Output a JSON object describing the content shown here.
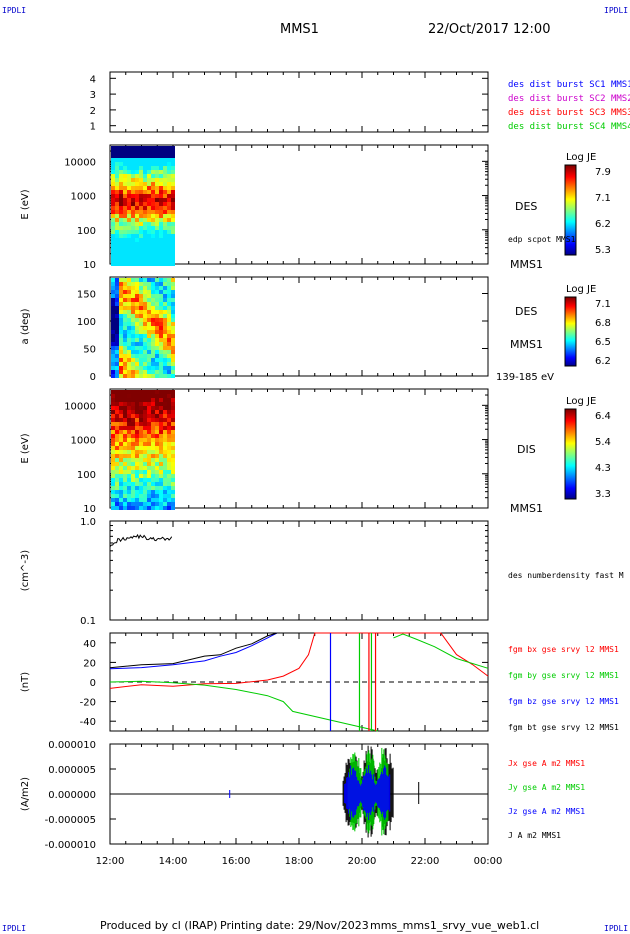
{
  "corner_label": "IPDLI",
  "header": {
    "spacecraft": "MMS1",
    "date_time": "22/Oct/2017 12:00"
  },
  "footer": {
    "produced_by": "Produced by cl (IRAP)",
    "printing_date": "Printing date: 29/Nov/2023",
    "file": "mms_mms1_srvy_vue_web1.cl"
  },
  "colors": {
    "bx": "#ff0000",
    "by": "#00cc00",
    "bz": "#0000ff",
    "bt": "#000000",
    "mms1": "#0000ff",
    "mms2": "#cc00cc",
    "mms3": "#ff0000",
    "mms4": "#00cc00"
  },
  "chart_data": [
    {
      "id": "availability",
      "type": "line",
      "yticks": [
        "1",
        "2",
        "3",
        "4"
      ],
      "ylim": [
        0.6,
        4.4
      ],
      "legend": [
        "des dist burst SC1 MMS1",
        "des dist burst SC2 MMS2",
        "des dist burst SC3 MMS3",
        "des dist burst SC4 MMS4"
      ],
      "series": []
    },
    {
      "id": "des_energy",
      "type": "heatmap",
      "ylabel": "E (eV)",
      "yscale": "log",
      "yticks": [
        "10",
        "100",
        "1000",
        "10000"
      ],
      "ylim": [
        10,
        30000
      ],
      "colorbar": {
        "title": "Log JE",
        "ticks": [
          "7.9",
          "7.1",
          "6.2",
          "5.3"
        ],
        "range": [
          5.3,
          7.9
        ]
      },
      "labels": [
        "DES",
        "edp scpot MMS1",
        "MMS1"
      ],
      "data_x_range": [
        "12:00",
        "14:00"
      ]
    },
    {
      "id": "des_pitch",
      "type": "heatmap",
      "ylabel": "a (deg)",
      "yticks": [
        "0",
        "50",
        "100",
        "150"
      ],
      "ylim": [
        0,
        180
      ],
      "colorbar": {
        "title": "Log JE",
        "ticks": [
          "7.1",
          "6.8",
          "6.5",
          "6.2"
        ],
        "range": [
          6.2,
          7.1
        ]
      },
      "labels": [
        "DES",
        "MMS1",
        "139-185 eV"
      ],
      "data_x_range": [
        "12:00",
        "14:00"
      ]
    },
    {
      "id": "dis_energy",
      "type": "heatmap",
      "ylabel": "E (eV)",
      "yscale": "log",
      "yticks": [
        "10",
        "100",
        "1000",
        "10000"
      ],
      "ylim": [
        10,
        30000
      ],
      "colorbar": {
        "title": "Log JE",
        "ticks": [
          "6.4",
          "5.4",
          "4.3",
          "3.3"
        ],
        "range": [
          3.3,
          6.4
        ]
      },
      "labels": [
        "DIS",
        "MMS1"
      ],
      "data_x_range": [
        "12:00",
        "14:00"
      ]
    },
    {
      "id": "density",
      "type": "line",
      "ylabel": "(cm^-3)",
      "yscale": "log",
      "yticks": [
        "0.1",
        "1.0"
      ],
      "ylim": [
        0.1,
        1.0
      ],
      "legend": [
        "des numberdensity fast M"
      ],
      "series": [
        {
          "x_hours": [
            12.0,
            12.25,
            12.5,
            12.75,
            13.0,
            13.25,
            13.5,
            13.75,
            14.0
          ],
          "values": [
            0.58,
            0.64,
            0.67,
            0.7,
            0.7,
            0.66,
            0.65,
            0.66,
            0.67
          ]
        }
      ]
    },
    {
      "id": "bfield",
      "type": "line",
      "ylabel": "(nT)",
      "yticks": [
        "-40",
        "-20",
        "0",
        "20",
        "40"
      ],
      "ylim": [
        -50,
        50
      ],
      "legend": [
        "fgm bx gse srvy l2 MMS1",
        "fgm by gse srvy l2 MMS1",
        "fgm bz gse srvy l2 MMS1",
        "fgm bt gse srvy l2 MMS1"
      ],
      "series": [
        {
          "name": "fgm bx gse srvy l2 MMS1",
          "x_hours": [
            12,
            13,
            14,
            15,
            16,
            17,
            17.5,
            18,
            18.3,
            18.5,
            22.5,
            23,
            23.5,
            24
          ],
          "values": [
            -5,
            -4,
            -3,
            -2,
            -1,
            2,
            6,
            14,
            28,
            50,
            50,
            28,
            18,
            6
          ]
        },
        {
          "name": "fgm by gse srvy l2 MMS1",
          "x_hours": [
            12,
            13,
            14,
            15,
            16,
            17,
            17.5,
            17.8,
            20.5,
            21,
            21.3,
            21.7,
            22.3,
            23,
            24
          ],
          "values": [
            1,
            0,
            -1,
            -3,
            -7,
            -14,
            -20,
            -30,
            -50,
            45,
            49,
            44,
            36,
            24,
            14
          ]
        },
        {
          "name": "fgm bz gse srvy l2 MMS1",
          "x_hours": [
            12,
            13,
            14,
            15,
            15.5,
            16,
            16.5,
            17,
            17.3
          ],
          "values": [
            15,
            16,
            18,
            22,
            25,
            30,
            37,
            45,
            50
          ]
        },
        {
          "name": "fgm bt gse srvy l2 MMS1",
          "x_hours": [
            12,
            13,
            14,
            15,
            15.5,
            16,
            16.5,
            17,
            17.3
          ],
          "values": [
            16,
            18,
            20,
            24,
            27,
            32,
            39,
            47,
            50
          ]
        }
      ],
      "spikes": [
        {
          "series": "fgm bz gse srvy l2 MMS1",
          "x_hours": 19.0
        },
        {
          "series": "fgm by gse srvy l2 MMS1",
          "x_hours": 19.92
        },
        {
          "series": "fgm bx gse srvy l2 MMS1",
          "x_hours": 20.22
        },
        {
          "series": "fgm by gse srvy l2 MMS1",
          "x_hours": 20.3
        },
        {
          "series": "fgm bx gse srvy l2 MMS1",
          "x_hours": 20.43
        }
      ]
    },
    {
      "id": "current",
      "type": "line",
      "ylabel": "(A/m2)",
      "yticks": [
        "-0.000010",
        "-0.000005",
        "0.000000",
        "0.000005",
        "0.000010"
      ],
      "ylim": [
        -1e-05,
        1e-05
      ],
      "legend": [
        "Jx gse A m2 MMS1",
        "Jy gse A m2 MMS1",
        "Jz gse A m2 MMS1",
        "J A m2 MMS1"
      ],
      "bursts": [
        {
          "series": "J A m2 MMS1",
          "x_range": [
            19.4,
            21.0
          ],
          "peak": 1e-05
        },
        {
          "series": "Jy gse A m2 MMS1",
          "x_range": [
            19.55,
            20.85
          ],
          "peak": 1e-05
        },
        {
          "series": "Jz gse A m2 MMS1",
          "x_range": [
            19.45,
            20.9
          ],
          "peak": 6e-06
        }
      ]
    }
  ],
  "x_axis": {
    "ticks": [
      "12:00",
      "14:00",
      "16:00",
      "18:00",
      "20:00",
      "22:00",
      "00:00"
    ],
    "range_hours": [
      12,
      24
    ]
  }
}
